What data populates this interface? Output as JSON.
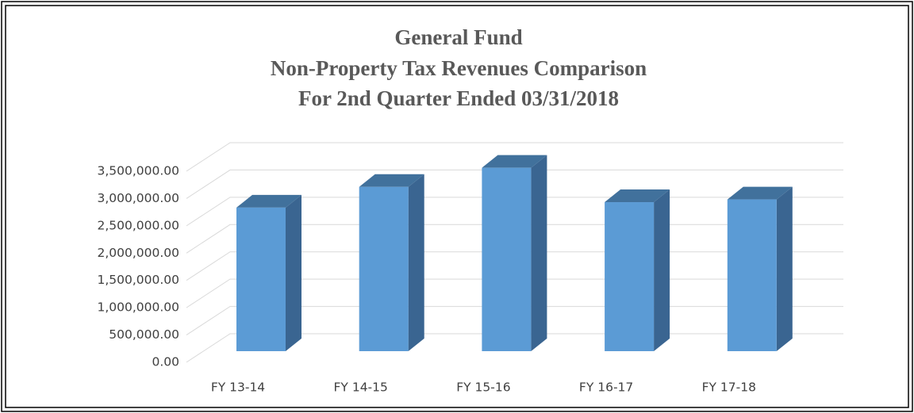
{
  "chart_data": {
    "type": "bar",
    "title": [
      "General Fund",
      "Non-Property Tax Revenues Comparison",
      "For 2nd Quarter Ended 03/31/2018"
    ],
    "categories": [
      "FY 13-14",
      "FY 14-15",
      "FY 15-16",
      "FY 16-17",
      "FY 17-18"
    ],
    "values": [
      2630000,
      3010000,
      3360000,
      2730000,
      2780000
    ],
    "color": "#5b9bd5",
    "ylim": [
      0,
      3500000
    ],
    "yticks": [
      {
        "value": 0,
        "label": "0.00"
      },
      {
        "value": 500000,
        "label": "500,000.00"
      },
      {
        "value": 1000000,
        "label": "1,000,000.00"
      },
      {
        "value": 1500000,
        "label": "1,500,000.00"
      },
      {
        "value": 2000000,
        "label": "2,000,000.00"
      },
      {
        "value": 2500000,
        "label": "2,500,000.00"
      },
      {
        "value": 3000000,
        "label": "3,000,000.00"
      },
      {
        "value": 3500000,
        "label": "3,500,000.00"
      }
    ],
    "grid": true
  }
}
